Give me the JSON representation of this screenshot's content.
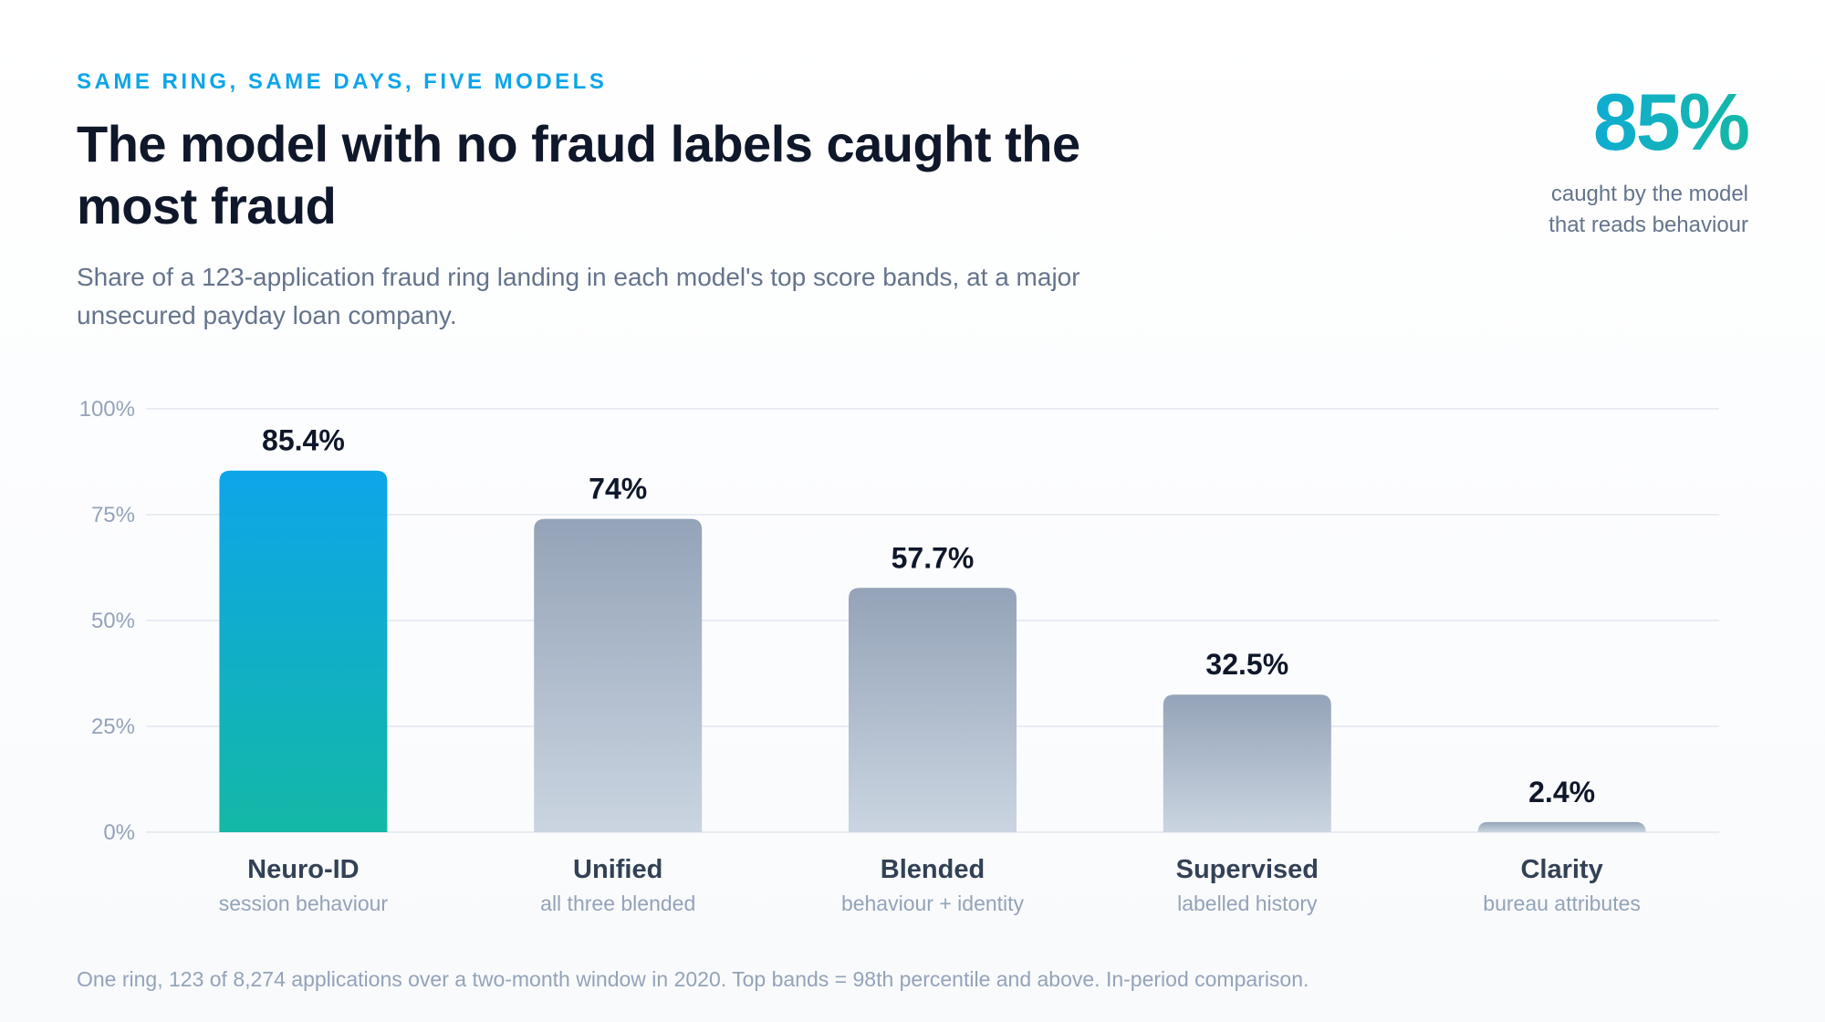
{
  "header": {
    "eyebrow": "SAME RING, SAME DAYS, FIVE MODELS",
    "title": "The model with no fraud labels caught the most fraud",
    "subtitle": "Share of a 123-application fraud ring landing in each model's top score bands, at a major unsecured payday loan company."
  },
  "callout": {
    "value": "85%",
    "text": "caught by the model that reads behaviour"
  },
  "footnote": "One ring, 123 of 8,274 applications over a two-month window in 2020. Top bands = 98th percentile and above. In-period comparison.",
  "colors": {
    "highlight_top": "#0ea5e9",
    "highlight_bottom": "#14b8a6",
    "muted_top": "#94a3b8",
    "muted_bottom": "#cbd5e1",
    "grid": "#e2e8f0",
    "axis_text": "#94a3b8",
    "label_text": "#334155",
    "sublabel_text": "#94a3b8",
    "value_text": "#0f172a"
  },
  "chart_data": {
    "type": "bar",
    "categories": [
      "Neuro-ID",
      "Unified",
      "Blended",
      "Supervised",
      "Clarity"
    ],
    "sublabels": [
      "session behaviour",
      "all three blended",
      "behaviour + identity",
      "labelled history",
      "bureau attributes"
    ],
    "values": [
      85.4,
      74,
      57.7,
      32.5,
      2.4
    ],
    "value_labels": [
      "85.4%",
      "74%",
      "57.7%",
      "32.5%",
      "2.4%"
    ],
    "highlight_index": 0,
    "ylim": [
      0,
      100
    ],
    "yticks": [
      0,
      25,
      50,
      75,
      100
    ],
    "ytick_labels": [
      "0%",
      "25%",
      "50%",
      "75%",
      "100%"
    ],
    "grid": true,
    "title": "",
    "xlabel": "",
    "ylabel": ""
  }
}
